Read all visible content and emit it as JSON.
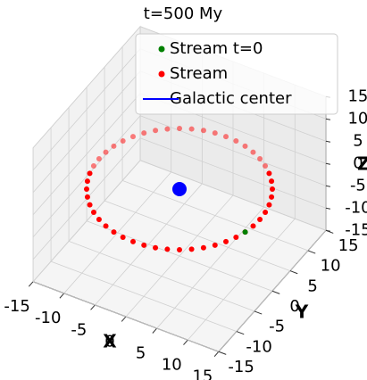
{
  "chart_data": {
    "type": "scatter3d",
    "title": "t=500 My",
    "xlabel": "X",
    "ylabel": "Y",
    "zlabel": "Z",
    "xlim": [
      -15,
      15
    ],
    "ylim": [
      -15,
      15
    ],
    "zlim": [
      -15,
      15
    ],
    "xticks": [
      -15,
      -10,
      -5,
      0,
      5,
      10,
      15
    ],
    "yticks": [
      -15,
      -10,
      -5,
      0,
      5,
      10,
      15
    ],
    "zticks": [
      -15,
      -10,
      -5,
      0,
      5,
      10,
      15
    ],
    "grid": true,
    "legend": "upper right",
    "series": [
      {
        "name": "Stream t=0",
        "color": "#008000",
        "marker": "dot",
        "x": [
          12.56
        ],
        "y": [
          -3.36
        ],
        "z": [
          0
        ]
      },
      {
        "name": "Stream",
        "color": "#ff0000",
        "marker": "dot",
        "x": [
          13,
          12.89,
          12.56,
          12.01,
          11.26,
          10.31,
          9.19,
          7.91,
          6.5,
          4.97,
          3.36,
          1.7,
          0,
          -1.7,
          -3.36,
          -4.97,
          -6.5,
          -7.91,
          -9.19,
          -10.31,
          -11.26,
          -12.01,
          -12.56,
          -12.89,
          -13,
          -12.89,
          -12.56,
          -12.01,
          -11.26,
          -10.31,
          -9.19,
          -7.91,
          -6.5,
          -4.97,
          -3.36,
          -1.7,
          0,
          1.7,
          3.36,
          4.97,
          6.5,
          7.91,
          9.19,
          10.31,
          11.26,
          12.01,
          12.56,
          12.89
        ],
        "y": [
          0,
          1.7,
          3.36,
          4.97,
          6.5,
          7.91,
          9.19,
          10.31,
          11.26,
          12.01,
          12.56,
          12.89,
          13,
          12.89,
          12.56,
          12.01,
          11.26,
          10.31,
          9.19,
          7.91,
          6.5,
          4.97,
          3.36,
          1.7,
          0,
          -1.7,
          -3.36,
          -4.97,
          -6.5,
          -7.91,
          -9.19,
          -10.31,
          -11.26,
          -12.01,
          -12.56,
          -12.89,
          -13,
          -12.89,
          -12.56,
          -12.01,
          -11.26,
          -10.31,
          -9.19,
          -7.91,
          -6.5,
          -4.97,
          -3.36,
          -1.7
        ],
        "z": [
          0,
          0,
          0,
          0,
          0,
          0,
          0,
          0,
          0,
          0,
          0,
          0,
          0,
          0,
          0,
          0,
          0,
          0,
          0,
          0,
          0,
          0,
          0,
          0,
          0,
          0,
          0,
          0,
          0,
          0,
          0,
          0,
          0,
          0,
          0,
          0,
          0,
          0,
          0,
          0,
          0,
          0,
          0,
          0,
          0,
          0,
          0,
          0
        ]
      },
      {
        "name": "Galactic center",
        "color": "#0000ff",
        "marker": "line",
        "x": [
          0
        ],
        "y": [
          0
        ],
        "z": [
          0
        ]
      }
    ]
  }
}
